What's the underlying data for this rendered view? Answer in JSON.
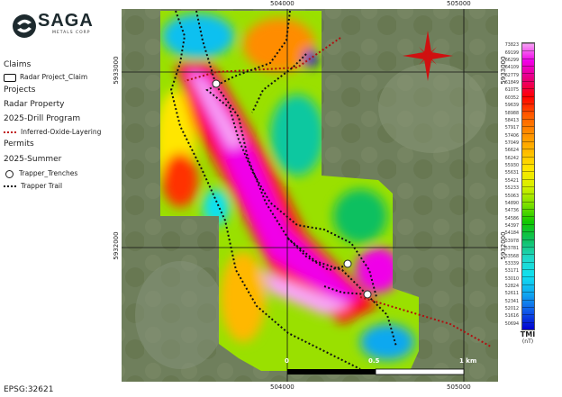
{
  "logo": {
    "name": "SAGA",
    "tagline": "METALS CORP"
  },
  "legend": {
    "groups": [
      {
        "heading": "Claims",
        "items": [
          {
            "symbol": "rectangle",
            "label": "Radar Project_Claim"
          }
        ]
      },
      {
        "heading": "Projects",
        "items": []
      },
      {
        "heading": "Radar Property",
        "items": []
      },
      {
        "heading": "2025-Drill Program",
        "items": [
          {
            "symbol": "red-dotted-line",
            "label": "Inferred-Oxide-Layering"
          }
        ]
      },
      {
        "heading": "Permits",
        "items": []
      },
      {
        "heading": "2025-Summer",
        "items": [
          {
            "symbol": "circle",
            "label": "Trapper_Trenches"
          },
          {
            "symbol": "black-dotted-line",
            "label": "Trapper Trail"
          }
        ]
      }
    ]
  },
  "grid": {
    "eastings": [
      "504000",
      "505000"
    ],
    "northings": [
      "5933000",
      "5932000"
    ]
  },
  "scale_bar": {
    "labels": [
      "0",
      "0.5",
      "1 km"
    ]
  },
  "colorbar": {
    "title": "TMI",
    "unit": "(nT)",
    "labels": [
      "73823",
      "69199",
      "66299",
      "64109",
      "62779",
      "61849",
      "61075",
      "60352",
      "59639",
      "58988",
      "58413",
      "57917",
      "57406",
      "57049",
      "56624",
      "56242",
      "55930",
      "55631",
      "55421",
      "55233",
      "55063",
      "54890",
      "54736",
      "54586",
      "54397",
      "54184",
      "53978",
      "53781",
      "53568",
      "53339",
      "53171",
      "53010",
      "52824",
      "52611",
      "52341",
      "52012",
      "51616",
      "50694"
    ],
    "colors": [
      "#f7a6f5",
      "#f000e8",
      "#e8007a",
      "#ff0000",
      "#ff5a00",
      "#ff8c00",
      "#ffb800",
      "#ffe600",
      "#d8f000",
      "#7ee000",
      "#10c800",
      "#10c060",
      "#20d8c8",
      "#10e0f0",
      "#10a8f0",
      "#1058e8",
      "#0000d0"
    ]
  },
  "north_arrow_color": "#d01010",
  "crs": "EPSG:32621"
}
